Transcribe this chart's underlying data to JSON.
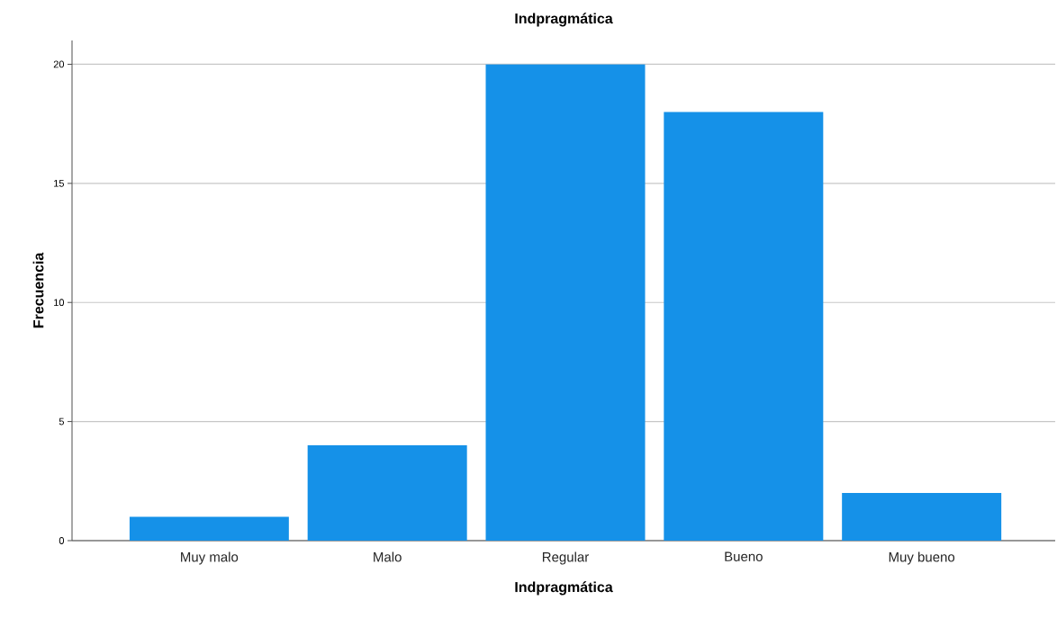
{
  "chart_data": {
    "type": "bar",
    "title": "Indpragmática",
    "xlabel": "Indpragmática",
    "ylabel": "Frecuencia",
    "categories": [
      "Muy malo",
      "Malo",
      "Regular",
      "Bueno",
      "Muy bueno"
    ],
    "values": [
      1,
      4,
      20,
      18,
      2
    ],
    "color": "#1591e8",
    "ylim": [
      0,
      21
    ],
    "yticks": [
      0,
      5,
      10,
      15,
      20
    ],
    "grid": "y"
  }
}
